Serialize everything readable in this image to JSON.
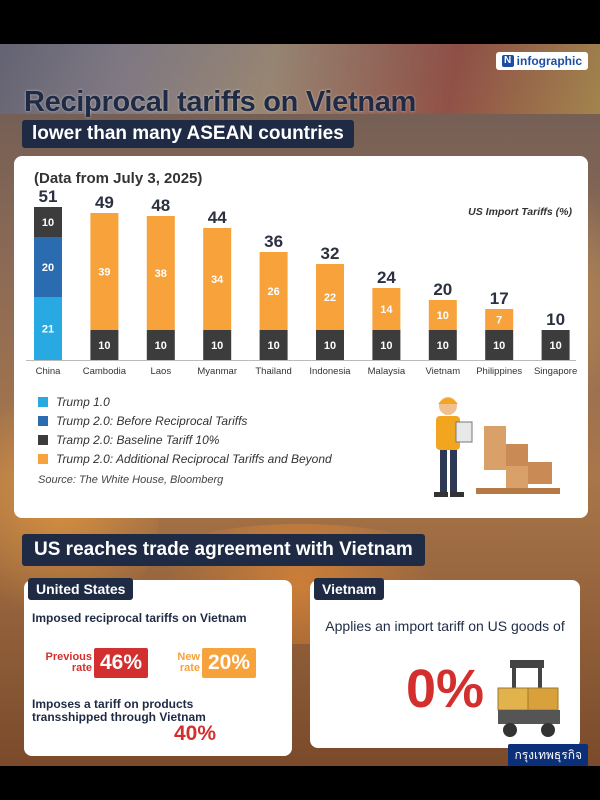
{
  "brand": {
    "label": "infographic",
    "icon": "n-logo-icon"
  },
  "title": {
    "main": "Reciprocal tariffs on Vietnam",
    "sub": "lower than many ASEAN countries"
  },
  "chart": {
    "date_note": "(Data from July 3, 2025)",
    "units_label": "US Import Tariffs (%)",
    "legend": [
      {
        "label": "Trump 1.0",
        "color": "#29a9e1"
      },
      {
        "label": "Trump 2.0: Before Reciprocal Tariffs",
        "color": "#2b6cb0"
      },
      {
        "label": "Tramp 2.0: Baseline Tariff 10%",
        "color": "#3c3c3c"
      },
      {
        "label": "Trump 2.0: Additional Reciprocal Tariffs and Beyond",
        "color": "#f7a23b"
      }
    ],
    "source": "Source: The White House, Bloomberg"
  },
  "chart_data": {
    "type": "bar",
    "stacked": true,
    "categories": [
      "China",
      "Cambodia",
      "Laos",
      "Myanmar",
      "Thailand",
      "Indonesia",
      "Malaysia",
      "Vietnam",
      "Philippines",
      "Singapore"
    ],
    "totals": [
      51,
      49,
      48,
      44,
      36,
      32,
      24,
      20,
      17,
      10
    ],
    "series": [
      {
        "name": "Tramp 2.0: Baseline Tariff 10%",
        "color": "#3c3c3c",
        "values": [
          0,
          10,
          10,
          10,
          10,
          10,
          10,
          10,
          10,
          10
        ]
      },
      {
        "name": "Trump 2.0: Additional Reciprocal Tariffs and Beyond",
        "color": "#f7a23b",
        "values": [
          0,
          39,
          38,
          34,
          26,
          22,
          14,
          10,
          7,
          0
        ]
      },
      {
        "name": "Trump 1.0",
        "color": "#29a9e1",
        "values": [
          21,
          0,
          0,
          0,
          0,
          0,
          0,
          0,
          0,
          0
        ]
      },
      {
        "name": "Trump 2.0: Before Reciprocal Tariffs",
        "color": "#2b6cb0",
        "values": [
          20,
          0,
          0,
          0,
          0,
          0,
          0,
          0,
          0,
          0
        ]
      },
      {
        "name": "China top segment",
        "color": "#3c3c3c",
        "values": [
          10,
          0,
          0,
          0,
          0,
          0,
          0,
          0,
          0,
          0
        ]
      }
    ],
    "ylim": [
      0,
      51
    ],
    "legend_position": "bottom-left",
    "grid": false
  },
  "agreement": {
    "heading": "US reaches trade agreement with Vietnam",
    "us": {
      "tag": "United States",
      "line1": "Imposed reciprocal tariffs on Vietnam",
      "prev_label": "Previous rate",
      "prev_value": "46%",
      "new_label": "New rate",
      "new_value": "20%",
      "line2": "Imposes a tariff on products transshipped through Vietnam",
      "trans_value": "40%"
    },
    "vn": {
      "tag": "Vietnam",
      "text": "Applies an import tariff on US goods of",
      "value": "0%"
    }
  },
  "footer": {
    "logo": "กรุงเทพธุรกิจ"
  }
}
